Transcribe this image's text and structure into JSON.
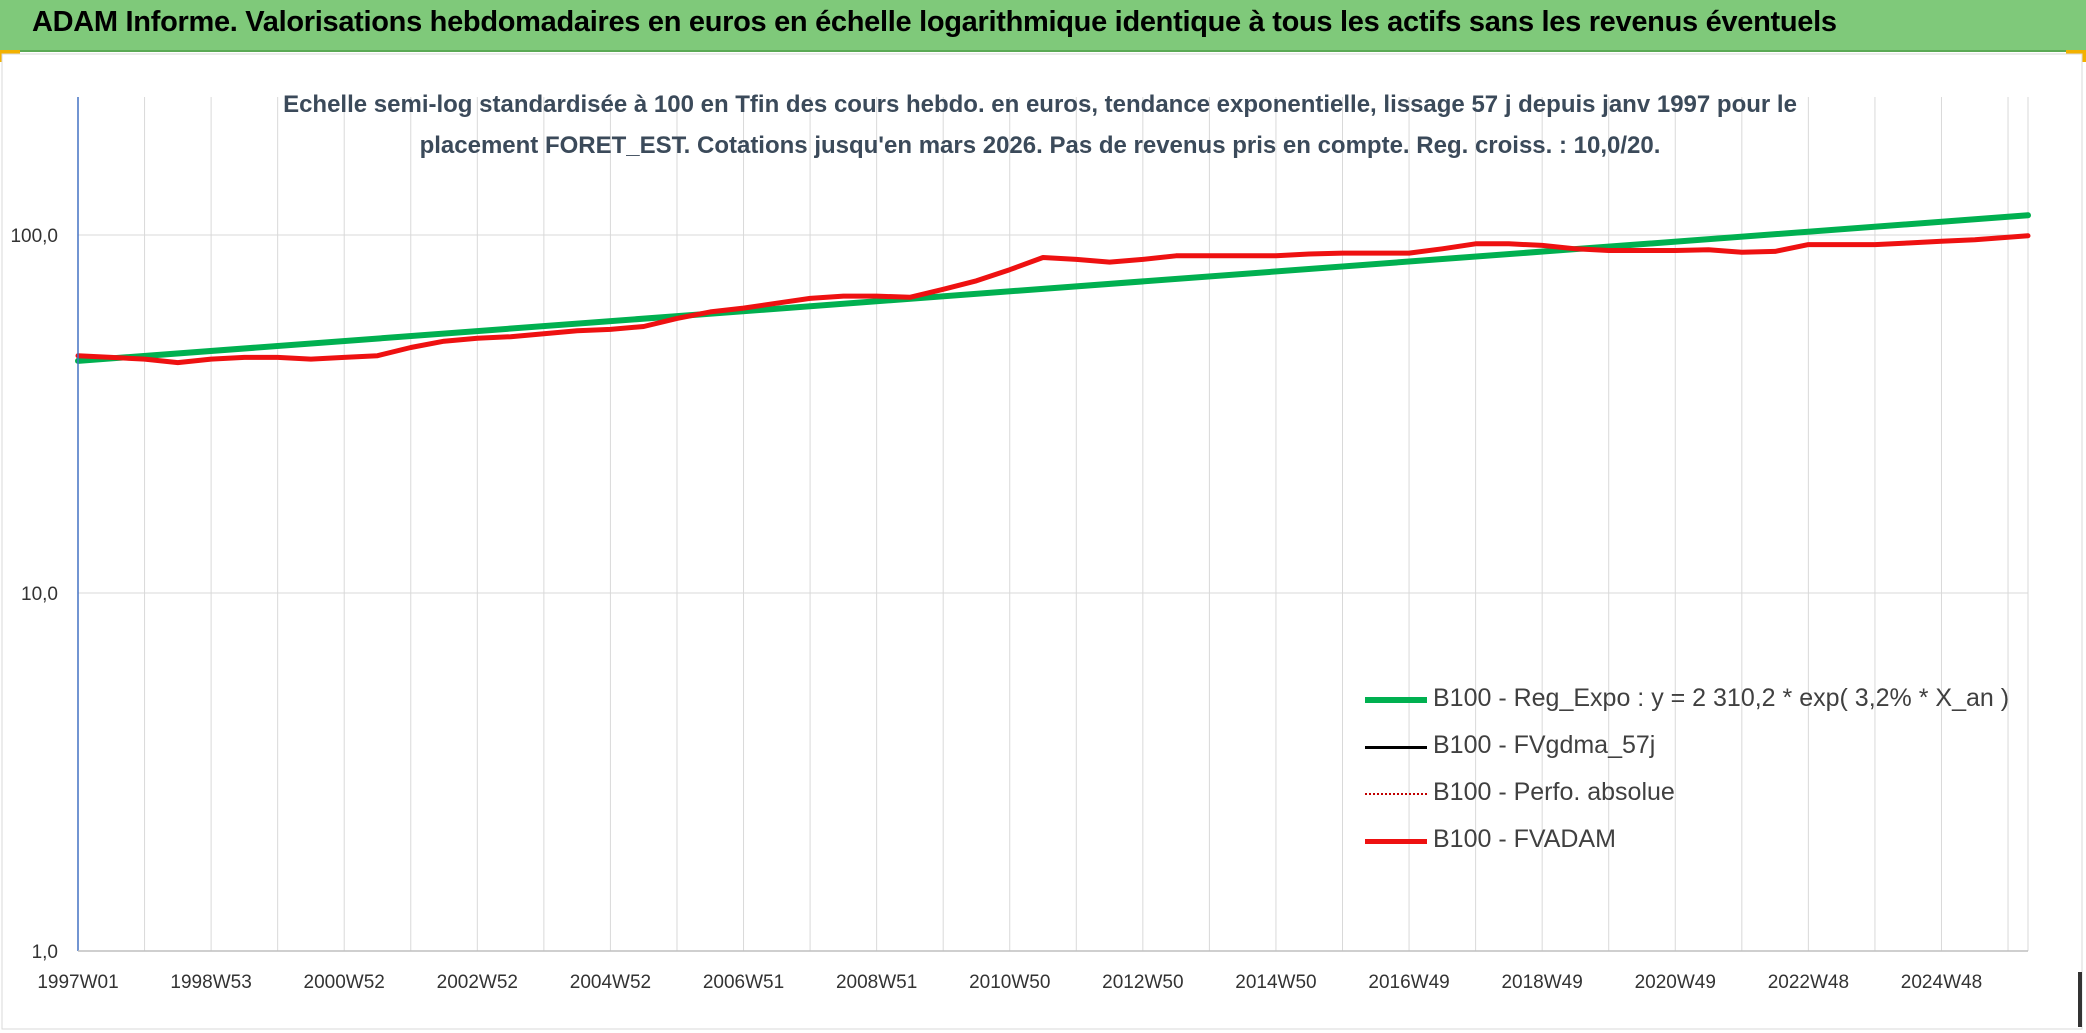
{
  "header": {
    "title": "ADAM Informe. Valorisations hebdomadaires en euros en échelle logarithmique identique à tous les actifs sans les revenus éventuels"
  },
  "colors": {
    "header_bg": "#7fc97a",
    "corner_accent": "#f2b100",
    "trend": "#00b050",
    "fvgdma": "#000000",
    "perfo": "#c00000",
    "fvadam": "#ee1111",
    "grid": "#d9d9d9",
    "axis": "#4472c4"
  },
  "chart_data": {
    "type": "line",
    "title": "Echelle semi-log standardisée à 100 en Tfin des cours hebdo. en euros, tendance exponentielle, lissage 57 j depuis janv 1997 pour le placement FORET_EST. Cotations jusqu'en mars 2026. Pas de revenus pris en compte. Reg. croiss. : 10,0/20.",
    "y_scale": "log",
    "ylim": [
      1,
      200
    ],
    "y_ticks": [
      {
        "value": 1,
        "label": "1,0"
      },
      {
        "value": 10,
        "label": "10,0"
      },
      {
        "value": 100,
        "label": "100,0"
      }
    ],
    "xlim": [
      1997.0,
      2026.3
    ],
    "x_ticks": [
      {
        "x": 1997.0,
        "label": "1997W01"
      },
      {
        "x": 1999.0,
        "label": "1998W53"
      },
      {
        "x": 2001.0,
        "label": "2000W52"
      },
      {
        "x": 2003.0,
        "label": "2002W52"
      },
      {
        "x": 2005.0,
        "label": "2004W52"
      },
      {
        "x": 2007.0,
        "label": "2006W51"
      },
      {
        "x": 2009.0,
        "label": "2008W51"
      },
      {
        "x": 2011.0,
        "label": "2010W50"
      },
      {
        "x": 2013.0,
        "label": "2012W50"
      },
      {
        "x": 2015.0,
        "label": "2014W50"
      },
      {
        "x": 2017.0,
        "label": "2016W49"
      },
      {
        "x": 2019.0,
        "label": "2018W49"
      },
      {
        "x": 2021.0,
        "label": "2020W49"
      },
      {
        "x": 2023.0,
        "label": "2022W48"
      },
      {
        "x": 2025.0,
        "label": "2024W48"
      }
    ],
    "minor_x_gridlines": [
      1998.0,
      2000.0,
      2002.0,
      2004.0,
      2006.0,
      2008.0,
      2010.0,
      2012.0,
      2014.0,
      2016.0,
      2018.0,
      2020.0,
      2022.0,
      2024.0,
      2026.0
    ],
    "grid": true,
    "legend_position": "bottom-right",
    "series": [
      {
        "name": "B100 - Reg_Expo : y = 2 310,2 * exp( 3,2% *  X_an )",
        "key": "trend",
        "style": "solid",
        "width": 6,
        "x": [
          1997.0,
          2026.3
        ],
        "y": [
          44.5,
          113.5
        ]
      },
      {
        "name": "B100 - FVgdma_57j",
        "key": "fvgdma",
        "style": "solid",
        "width": 3,
        "x": [],
        "y": []
      },
      {
        "name": "B100 - Perfo. absolue",
        "key": "perfo",
        "style": "dotted",
        "width": 2,
        "x": [],
        "y": []
      },
      {
        "name": "B100 - FVADAM",
        "key": "fvadam",
        "style": "solid",
        "width": 5,
        "x": [
          1997.0,
          1997.5,
          1998.0,
          1998.5,
          1999.0,
          1999.5,
          2000.0,
          2000.5,
          2001.0,
          2001.5,
          2002.0,
          2002.5,
          2003.0,
          2003.5,
          2004.0,
          2004.5,
          2005.0,
          2005.5,
          2006.0,
          2006.5,
          2007.0,
          2007.5,
          2008.0,
          2008.5,
          2009.0,
          2009.5,
          2010.0,
          2010.5,
          2011.0,
          2011.5,
          2012.0,
          2012.5,
          2013.0,
          2013.5,
          2014.0,
          2014.5,
          2015.0,
          2015.5,
          2016.0,
          2016.5,
          2017.0,
          2017.5,
          2018.0,
          2018.5,
          2019.0,
          2019.5,
          2020.0,
          2020.5,
          2021.0,
          2021.5,
          2022.0,
          2022.5,
          2023.0,
          2023.5,
          2024.0,
          2024.5,
          2025.0,
          2025.5,
          2026.0,
          2026.3
        ],
        "y": [
          46.0,
          45.5,
          45.0,
          44.0,
          45.0,
          45.5,
          45.5,
          45.0,
          45.5,
          46.0,
          48.5,
          50.5,
          51.5,
          52.0,
          53.0,
          54.0,
          54.5,
          55.5,
          58.5,
          61.0,
          62.5,
          64.5,
          66.5,
          67.5,
          67.5,
          67.0,
          70.5,
          74.5,
          80.0,
          86.5,
          85.5,
          84.0,
          85.5,
          87.5,
          87.5,
          87.5,
          87.5,
          88.5,
          89.0,
          89.0,
          89.0,
          91.5,
          94.5,
          94.5,
          93.5,
          91.5,
          90.5,
          90.5,
          90.5,
          91.0,
          89.5,
          90.0,
          94.0,
          94.0,
          94.0,
          95.0,
          96.0,
          97.0,
          98.5,
          99.5
        ]
      }
    ]
  }
}
